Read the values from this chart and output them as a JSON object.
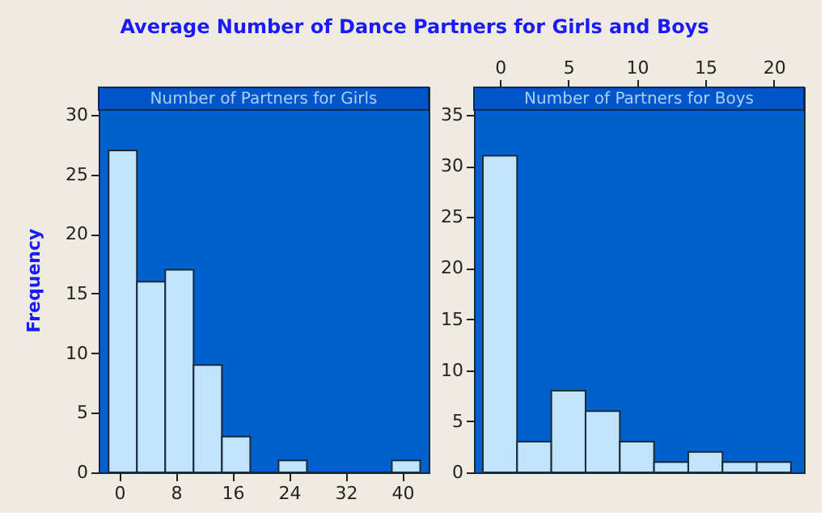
{
  "chart_data": [
    {
      "type": "histogram",
      "title": "Number of Partners for Girls",
      "ylabel": "Frequency",
      "annotations": [
        "Average Number of Dance Partners for Girls and Boys"
      ],
      "bins": [
        -1.5,
        2.5,
        6.5,
        10.5,
        14.5,
        18.5,
        22.5,
        26.5,
        30.5,
        34.5,
        38.5,
        42.5
      ],
      "values": [
        27,
        16,
        17,
        9,
        3,
        0,
        1,
        0,
        0,
        0,
        1
      ],
      "color": "#c0e4fc",
      "xlim": [
        -2.9,
        43.7
      ],
      "xticks": [
        0,
        8,
        16,
        24,
        32,
        40
      ],
      "ylim": [
        0,
        32.3
      ],
      "yticks": [
        0,
        5,
        10,
        15,
        20,
        25,
        30
      ],
      "grid": false
    },
    {
      "type": "histogram",
      "title": "Number of Partners for Boys",
      "bins": [
        -1.25,
        1.25,
        3.75,
        6.25,
        8.75,
        11.25,
        13.75,
        16.25,
        18.75,
        21.25
      ],
      "values": [
        31,
        3,
        8,
        6,
        3,
        1,
        2,
        1,
        1
      ],
      "color": "#c0e4fc",
      "xlim": [
        -1.9,
        22.2
      ],
      "xticks": [
        0,
        5,
        10,
        15,
        20
      ],
      "ylim": [
        0,
        37.7
      ],
      "yticks": [
        0,
        5,
        10,
        15,
        20,
        25,
        30,
        35
      ],
      "grid": false
    }
  ]
}
